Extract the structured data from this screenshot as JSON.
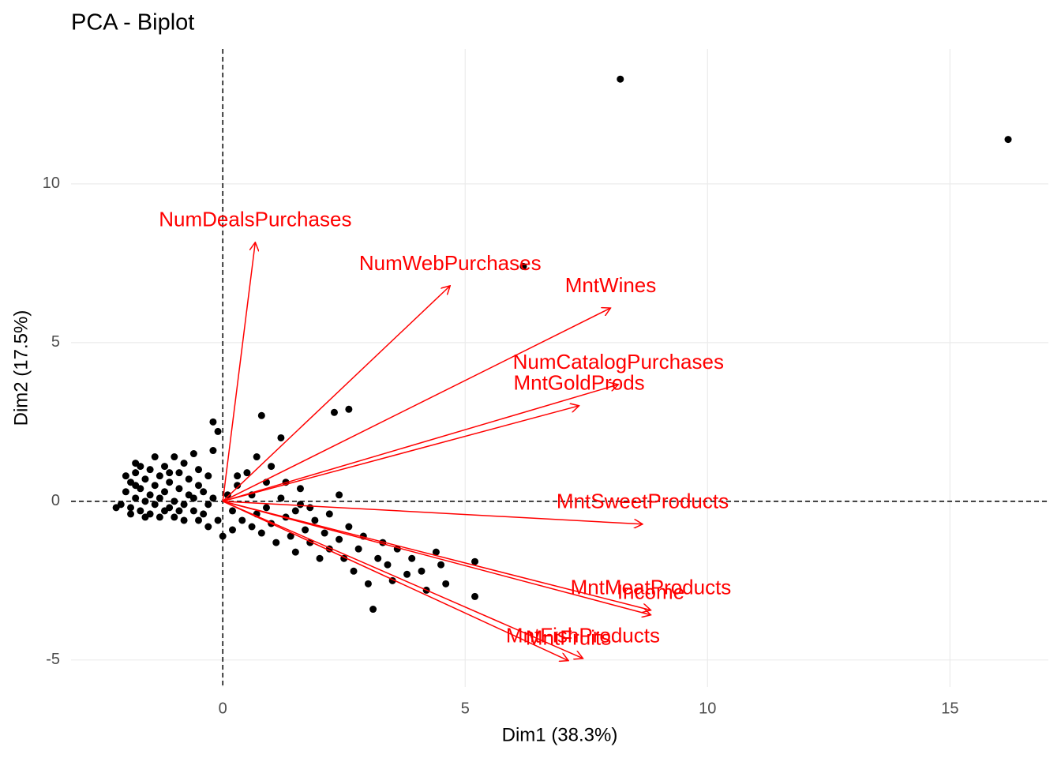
{
  "chart_data": {
    "type": "scatter",
    "title": "PCA - Biplot",
    "x_label": "Dim1 (38.3%)",
    "y_label": "Dim2 (17.5%)",
    "xlim": [
      -3.13,
      17.03
    ],
    "ylim": [
      -5.85,
      14.25
    ],
    "xticks": [
      0,
      5,
      10,
      15
    ],
    "yticks": [
      -5,
      0,
      5,
      10
    ],
    "grid": true,
    "hline": 0,
    "vline": 0,
    "color": "#000000",
    "x": [
      -2.2,
      -2.1,
      -2.0,
      -1.9,
      -1.9,
      -1.8,
      -1.8,
      -1.8,
      -1.7,
      -1.7,
      -1.6,
      -1.6,
      -1.5,
      -1.5,
      -1.5,
      -1.4,
      -1.4,
      -1.3,
      -1.3,
      -1.3,
      -1.2,
      -1.2,
      -1.1,
      -1.1,
      -1.0,
      -1.0,
      -1.0,
      -0.9,
      -0.9,
      -0.8,
      -0.8,
      -0.8,
      -0.7,
      -0.7,
      -0.6,
      -0.6,
      -0.5,
      -0.5,
      -0.4,
      -0.4,
      -0.3,
      -0.3,
      -0.2,
      -0.2,
      -0.1,
      -0.1,
      -0.2,
      0.0,
      -0.3,
      -1.9,
      -2.0,
      -1.7,
      -1.4,
      -1.6,
      -1.2,
      -0.9,
      -0.6,
      -0.5,
      -1.1,
      -1.8,
      0.1,
      0.2,
      0.3,
      0.4,
      0.5,
      0.6,
      0.6,
      0.7,
      0.7,
      0.8,
      0.9,
      0.9,
      1.0,
      1.0,
      1.1,
      1.2,
      1.3,
      1.3,
      1.4,
      1.5,
      1.5,
      1.6,
      1.7,
      1.8,
      1.8,
      1.9,
      2.0,
      2.1,
      2.2,
      2.2,
      2.3,
      2.4,
      2.5,
      2.6,
      2.6,
      2.7,
      2.8,
      2.9,
      3.0,
      3.1,
      3.2,
      3.3,
      3.4,
      3.5,
      3.6,
      3.8,
      3.9,
      4.1,
      4.2,
      4.4,
      4.5,
      4.6,
      5.2,
      5.2,
      1.2,
      0.8,
      0.3,
      0.2,
      1.6,
      2.4,
      6.2,
      8.2,
      16.2
    ],
    "values": [
      -0.2,
      -0.1,
      0.3,
      0.6,
      -0.2,
      0.9,
      1.2,
      0.1,
      0.4,
      -0.3,
      0.7,
      0.0,
      1.0,
      0.2,
      -0.4,
      0.5,
      -0.1,
      0.8,
      0.1,
      -0.5,
      1.1,
      0.3,
      0.6,
      -0.2,
      1.4,
      0.0,
      -0.5,
      0.9,
      0.4,
      1.2,
      -0.1,
      -0.6,
      0.7,
      0.2,
      1.5,
      -0.3,
      0.5,
      1.0,
      -0.4,
      0.3,
      0.8,
      -0.1,
      1.6,
      0.1,
      -0.6,
      2.2,
      2.5,
      -1.1,
      -0.8,
      -0.4,
      0.8,
      1.1,
      1.4,
      -0.5,
      -0.3,
      -0.3,
      0.1,
      -0.6,
      0.9,
      0.5,
      0.2,
      -0.3,
      0.5,
      -0.6,
      0.9,
      0.2,
      -0.8,
      1.4,
      -0.4,
      -1.0,
      0.6,
      -0.2,
      -0.7,
      1.1,
      -1.3,
      0.1,
      -0.5,
      0.6,
      -1.1,
      -0.3,
      -1.6,
      0.4,
      -0.9,
      -1.3,
      -0.2,
      -0.6,
      -1.8,
      -1.0,
      -0.4,
      -1.5,
      2.8,
      -1.2,
      -1.8,
      -0.8,
      2.9,
      -2.2,
      -1.5,
      -1.1,
      -2.6,
      -3.4,
      -1.8,
      -1.3,
      -2.0,
      -2.5,
      -1.5,
      -2.3,
      -1.8,
      -2.2,
      -2.8,
      -1.6,
      -2.0,
      -2.6,
      -1.9,
      -3.0,
      2.0,
      2.7,
      0.8,
      -0.9,
      -0.1,
      0.2,
      7.4,
      13.3,
      11.4
    ],
    "vectors": {
      "color": "#ff0000",
      "labels": [
        "NumDealsPurchases",
        "NumWebPurchases",
        "MntWines",
        "NumCatalogPurchases",
        "MntGoldProds",
        "MntSweetProducts",
        "MntMeatProducts",
        "Income",
        "MntFishProducts",
        "MntFruits"
      ],
      "x": [
        0.67,
        4.69,
        8.0,
        8.16,
        7.35,
        8.66,
        8.83,
        8.83,
        7.43,
        7.13
      ],
      "y": [
        8.16,
        6.79,
        6.09,
        3.68,
        3.01,
        -0.72,
        -3.43,
        -3.58,
        -4.95,
        -5.02
      ]
    }
  }
}
